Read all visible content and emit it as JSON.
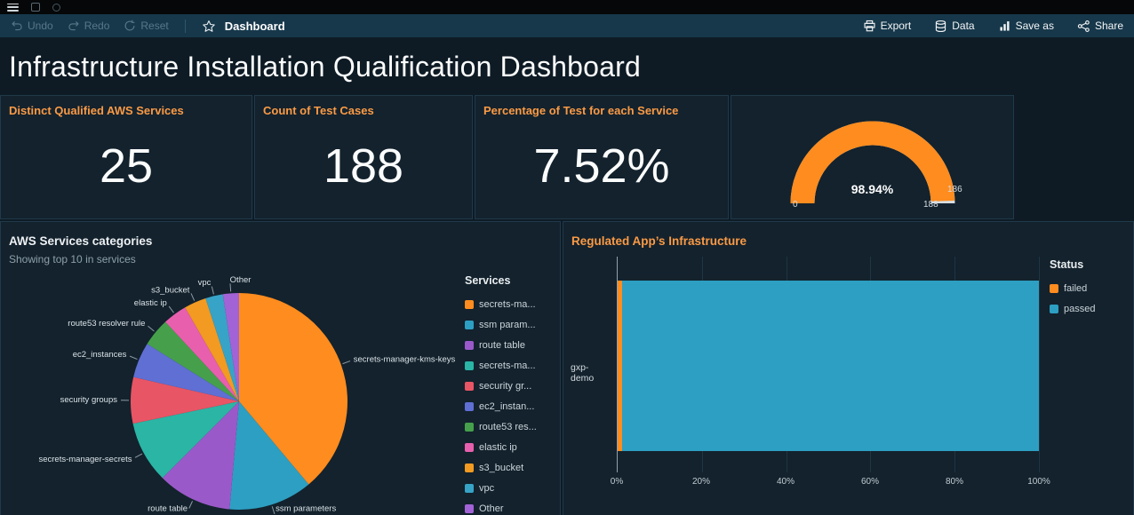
{
  "toolbar": {
    "undo": "Undo",
    "redo": "Redo",
    "reset": "Reset",
    "view_label": "Dashboard",
    "export": "Export",
    "data": "Data",
    "save_as": "Save as",
    "share": "Share"
  },
  "title": "Infrastructure Installation Qualification Dashboard",
  "kpis": [
    {
      "label": "Distinct Qualified AWS Services",
      "value": "25"
    },
    {
      "label": "Count of Test Cases",
      "value": "188"
    },
    {
      "label": "Percentage of Test for each Service",
      "value": "7.52%"
    }
  ],
  "chart_data": [
    {
      "type": "gauge",
      "display": "98.94%",
      "value_pct": 98.94,
      "min": 0,
      "max": 188,
      "value": 186,
      "arc_color": "#ff8c1e",
      "track_color": "#d8dde0"
    },
    {
      "type": "pie",
      "title": "AWS Services categories",
      "subtitle": "Showing top 10 in services",
      "legend_title": "Services",
      "legend_position": "right",
      "slices": [
        {
          "label": "secrets-manager-kms-keys",
          "legend_label": "secrets-ma...",
          "value": 38.9,
          "color": "#ff8c1e"
        },
        {
          "label": "ssm parameters",
          "legend_label": "ssm param...",
          "value": 12.5,
          "color": "#2d9fc2"
        },
        {
          "label": "route table",
          "legend_label": "route table",
          "value": 11.1,
          "color": "#9a59c9"
        },
        {
          "label": "secrets-manager-secrets",
          "legend_label": "secrets-ma...",
          "value": 9.2,
          "color": "#2ab5a5"
        },
        {
          "label": "security groups",
          "legend_label": "security gr...",
          "value": 6.9,
          "color": "#e85565"
        },
        {
          "label": "ec2_instances",
          "legend_label": "ec2_instan...",
          "value": 5.3,
          "color": "#5f6fd4"
        },
        {
          "label": "route53 resolver rule",
          "legend_label": "route53 res...",
          "value": 4.2,
          "color": "#46a04b"
        },
        {
          "label": "elastic ip",
          "legend_label": "elastic ip",
          "value": 3.6,
          "color": "#e85fae"
        },
        {
          "label": "s3_bucket",
          "legend_label": "s3_bucket",
          "value": 3.3,
          "color": "#f29a22"
        },
        {
          "label": "vpc",
          "legend_label": "vpc",
          "value": 2.6,
          "color": "#37a3c6"
        },
        {
          "label": "Other",
          "legend_label": "Other",
          "value": 2.4,
          "color": "#a263d6"
        }
      ]
    },
    {
      "type": "bar",
      "orientation": "horizontal",
      "title": "Regulated App’s Infrastructure",
      "categories": [
        "gxp-demo"
      ],
      "series": [
        {
          "name": "failed",
          "color": "#ff8c1e",
          "values": [
            1.06
          ]
        },
        {
          "name": "passed",
          "color": "#2d9fc2",
          "values": [
            98.94
          ]
        }
      ],
      "x_ticks": [
        "0%",
        "20%",
        "40%",
        "60%",
        "80%",
        "100%"
      ],
      "xlim": [
        0,
        100
      ],
      "legend_title": "Status",
      "legend_position": "right"
    }
  ]
}
